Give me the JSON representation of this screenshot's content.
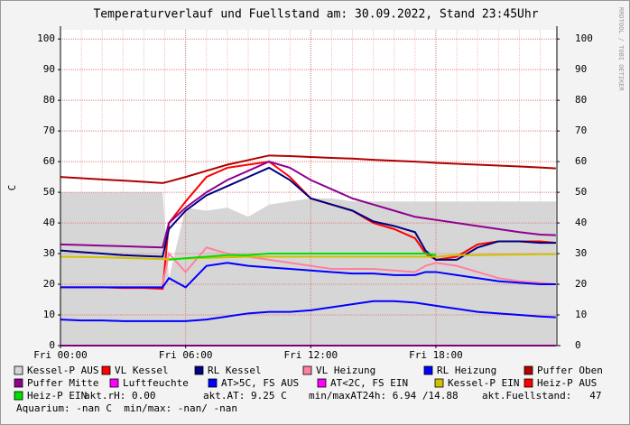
{
  "chart_data": {
    "type": "line",
    "title": "Temperaturverlauf und Fuellstand am: 30.09.2022, Stand 23:45Uhr",
    "side_note": "RRDTOOL / TOBI OETIKER",
    "y_label": "C",
    "xlim": [
      0,
      23.8
    ],
    "ylim": [
      0,
      103
    ],
    "xticks": [
      {
        "value": 0,
        "label": "Fri 00:00"
      },
      {
        "value": 6,
        "label": "Fri 06:00"
      },
      {
        "value": 12,
        "label": "Fri 12:00"
      },
      {
        "value": 18,
        "label": "Fri 18:00"
      }
    ],
    "yticks": [
      0,
      10,
      20,
      30,
      40,
      50,
      60,
      70,
      80,
      90,
      100
    ],
    "grid": true,
    "x": [
      0,
      1,
      2,
      3,
      4,
      4.9,
      5.2,
      6,
      7,
      8,
      9,
      10,
      11,
      12,
      13,
      14,
      15,
      16,
      17,
      17.5,
      18,
      19,
      20,
      21,
      22,
      23,
      23.75
    ],
    "series": [
      {
        "name": "Kessel-P AUS",
        "color": "#d6d6d6",
        "style": "area",
        "values": [
          50,
          50,
          50,
          50,
          50,
          50,
          22,
          45,
          44,
          45,
          42,
          46,
          47,
          48,
          48,
          47,
          47,
          47,
          47,
          47,
          47,
          47,
          47,
          47,
          47,
          47,
          47
        ]
      },
      {
        "name": "VL Kessel",
        "color": "#ff0000",
        "values": [
          19,
          19,
          19,
          18.8,
          18.8,
          18.5,
          40,
          47,
          55,
          58,
          59,
          60,
          55,
          48,
          46,
          44,
          40,
          38,
          35,
          30,
          28,
          29,
          33,
          34,
          34,
          34,
          33.5
        ]
      },
      {
        "name": "RL Kessel",
        "color": "#000080",
        "values": [
          31,
          30.5,
          30,
          29.5,
          29.2,
          29,
          38,
          44,
          49,
          52,
          55,
          58,
          54,
          48,
          46,
          44,
          40.5,
          39,
          37,
          31,
          28,
          28,
          32,
          34,
          34,
          33.5,
          33.5
        ]
      },
      {
        "name": "VL Heizung",
        "color": "#ff80a0",
        "values": [
          null,
          null,
          null,
          null,
          null,
          20,
          30,
          24,
          32,
          30,
          29,
          28,
          27,
          26,
          25,
          25,
          25,
          24.5,
          24,
          26,
          27,
          26,
          24,
          22,
          21,
          20.5,
          20
        ]
      },
      {
        "name": "RL Heizung",
        "color": "#0000ff",
        "values": [
          19,
          19,
          19,
          19,
          19,
          19,
          22,
          19,
          26,
          27,
          26,
          25.5,
          25,
          24.5,
          24,
          23.5,
          23.5,
          23,
          23,
          24,
          24,
          23,
          22,
          21,
          20.5,
          20,
          20
        ]
      },
      {
        "name": "Puffer Oben",
        "color": "#b00000",
        "values": [
          55,
          54.6,
          54.2,
          53.8,
          53.4,
          53,
          53.5,
          55,
          57,
          59,
          60.5,
          62,
          61.8,
          61.5,
          61.2,
          61,
          60.6,
          60.3,
          60,
          59.8,
          59.6,
          59.3,
          59,
          58.7,
          58.4,
          58.1,
          57.8
        ]
      },
      {
        "name": "Puffer Mitte",
        "color": "#900090",
        "values": [
          33,
          32.8,
          32.6,
          32.4,
          32.2,
          32,
          40,
          45,
          50,
          54,
          57,
          60,
          58,
          54,
          51,
          48,
          46,
          44,
          42,
          41.5,
          41,
          40,
          39,
          38,
          37,
          36.2,
          36
        ]
      },
      {
        "name": "Luftfeuchte",
        "color": "#ff00ff",
        "values": [
          0,
          0,
          0,
          0,
          0,
          0,
          0,
          0,
          0,
          0,
          0,
          0,
          0,
          0,
          0,
          0,
          0,
          0,
          0,
          0,
          0,
          0,
          0,
          0,
          0,
          0,
          0
        ]
      },
      {
        "name": "AT>5C, FS AUS",
        "color": "#0000ff",
        "values": [
          8.5,
          8.2,
          8.2,
          8,
          8,
          8,
          8,
          8,
          8.5,
          9.5,
          10.5,
          11,
          11,
          11.5,
          12.5,
          13.5,
          14.5,
          14.5,
          14,
          13.5,
          13,
          12,
          11,
          10.5,
          10,
          9.5,
          9.25
        ]
      },
      {
        "name": "AT<2C, FS EIN",
        "color": "#ff00ff"
      },
      {
        "name": "Kessel-P EIN",
        "color": "#d0c000",
        "values": [
          29,
          28.9,
          28.8,
          28.6,
          28.4,
          28.2,
          28.2,
          28.4,
          28.6,
          28.8,
          29,
          29,
          29,
          29,
          29,
          29,
          29,
          29,
          29,
          29,
          29,
          29.5,
          29.5,
          29.6,
          29.7,
          29.8,
          29.8
        ]
      },
      {
        "name": "Heiz-P AUS",
        "color": "#ff0000"
      },
      {
        "name": "Heiz-P EIN",
        "color": "#00e000",
        "values": [
          null,
          null,
          null,
          null,
          null,
          null,
          28,
          28.5,
          29,
          29.5,
          29.5,
          30,
          30,
          30,
          30,
          30,
          30,
          30,
          30,
          30,
          29.5,
          null,
          null,
          null,
          null,
          null,
          null
        ]
      }
    ],
    "info": [
      "akt.rH: 0.00",
      "akt.AT: 9.25 C",
      "min/maxAT24h: 6.94 /14.88",
      "akt.Fuellstand:   47",
      "Aquarium: -nan C  min/max: -nan/ -nan"
    ]
  }
}
